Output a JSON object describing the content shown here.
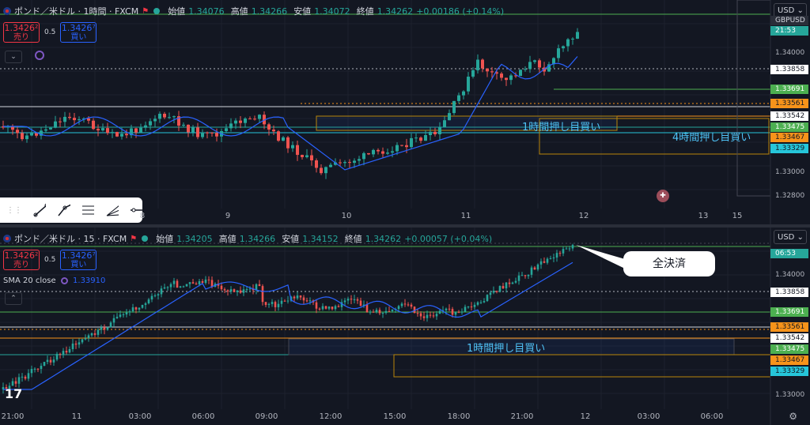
{
  "pane1": {
    "symbol": "ポンド／米ドル · 1時間 · FXCM",
    "open_label": "始値",
    "open": "1.34076",
    "high_label": "高値",
    "high": "1.34266",
    "low_label": "安値",
    "low": "1.34072",
    "close_label": "終値",
    "close": "1.34262",
    "change": "+0.00186 (+0.14%)",
    "sell_price": "1.3426²",
    "sell_label": "売り",
    "buy_price": "1.3426⁷",
    "buy_label": "買い",
    "spread": "0.5",
    "currency": "USD",
    "ticker_badge": "GBPUSD",
    "countdown": "21:53",
    "price_ticks": [
      "1.34000",
      "1.33858",
      "1.33691",
      "1.33561",
      "1.33542",
      "1.33475",
      "1.33467",
      "1.33329",
      "1.33000",
      "1.32800"
    ],
    "time_ticks": [
      "8",
      "9",
      "10",
      "11",
      "12",
      "13",
      "15"
    ],
    "zone1_label": "1時間押し目買い",
    "zone2_label": "4時間押し目買い",
    "drawing_tools": [
      "trend-line-tool",
      "ray-tool",
      "parallel-channel-tool",
      "fib-tool",
      "horizontal-line-tool"
    ]
  },
  "pane2": {
    "symbol": "ポンド／米ドル · 15 · FXCM",
    "open_label": "始値",
    "open": "1.34205",
    "high_label": "高値",
    "high": "1.34266",
    "low_label": "安値",
    "low": "1.34152",
    "close_label": "終値",
    "close": "1.34262",
    "change": "+0.00057 (+0.04%)",
    "sell_price": "1.3426²",
    "sell_label": "売り",
    "buy_price": "1.3426⁷",
    "buy_label": "買い",
    "spread": "0.5",
    "sma_label": "SMA 20 close",
    "sma_value": "1.33910",
    "currency": "USD",
    "countdown": "06:53",
    "price_ticks": [
      "1.34000",
      "1.33858",
      "1.33691",
      "1.33561",
      "1.33542",
      "1.33475",
      "1.33467",
      "1.33329",
      "1.33000"
    ],
    "time_ticks": [
      "21:00",
      "11",
      "03:00",
      "06:00",
      "09:00",
      "12:00",
      "15:00",
      "18:00",
      "21:00",
      "12",
      "03:00",
      "06:00"
    ],
    "zone_label": "1時間押し目買い",
    "callout": "全決済"
  },
  "colors": {
    "up": "#26a69a",
    "down": "#ef5350",
    "ma": "#2962ff",
    "bg": "#131722",
    "orange": "#f7931a",
    "green_badge": "#4caf50"
  }
}
